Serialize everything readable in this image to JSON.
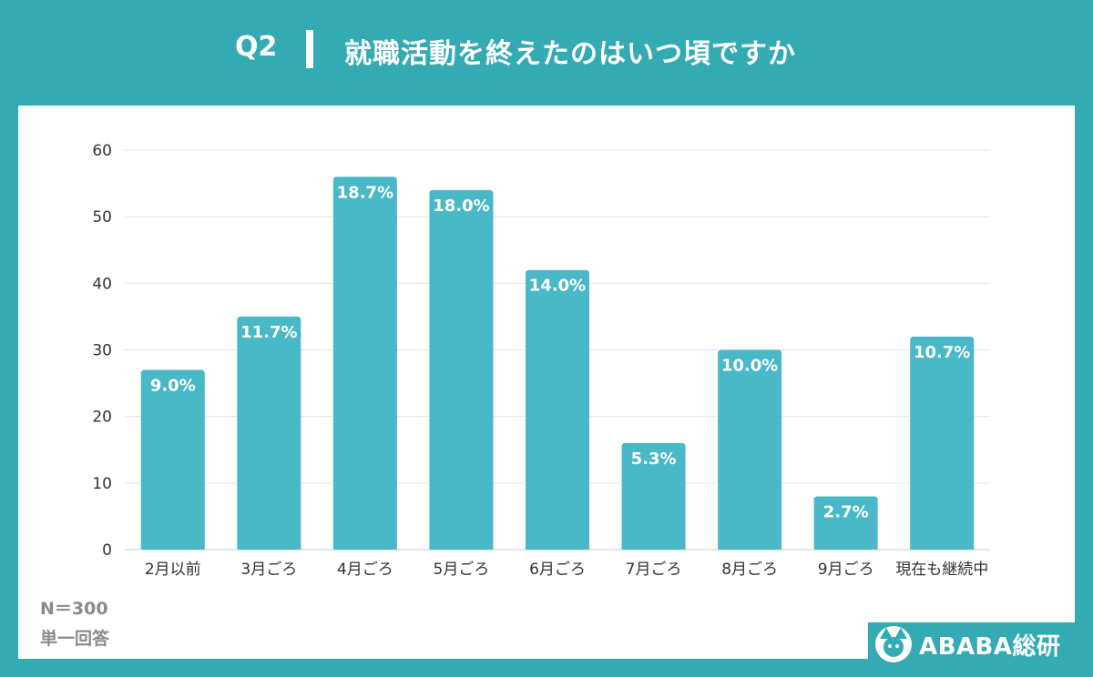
{
  "header": {
    "question": "Q2",
    "title": "就職活動を終えたのはいつ頃ですか"
  },
  "footnote": {
    "n": "N＝300",
    "type": "単一回答"
  },
  "brand": {
    "name": "ABABA総研",
    "logo_icon": "alpaca-logo-icon"
  },
  "colors": {
    "background": "#34abb3",
    "bar": "#49b9c7",
    "grid": "#e3e6ee"
  },
  "chart_data": {
    "type": "bar",
    "categories": [
      "2月以前",
      "3月ごろ",
      "4月ごろ",
      "5月ごろ",
      "6月ごろ",
      "7月ごろ",
      "8月ごろ",
      "9月ごろ",
      "現在も継続中"
    ],
    "values": [
      27,
      35,
      56,
      54,
      42,
      16,
      30,
      8,
      32
    ],
    "data_labels": [
      "9.0%",
      "11.7%",
      "18.7%",
      "18.0%",
      "14.0%",
      "5.3%",
      "10.0%",
      "2.7%",
      "10.7%"
    ],
    "yticks": [
      0,
      10,
      20,
      30,
      40,
      50,
      60
    ],
    "ylim": [
      0,
      60
    ],
    "grid": true,
    "title": "",
    "xlabel": "",
    "ylabel": ""
  }
}
